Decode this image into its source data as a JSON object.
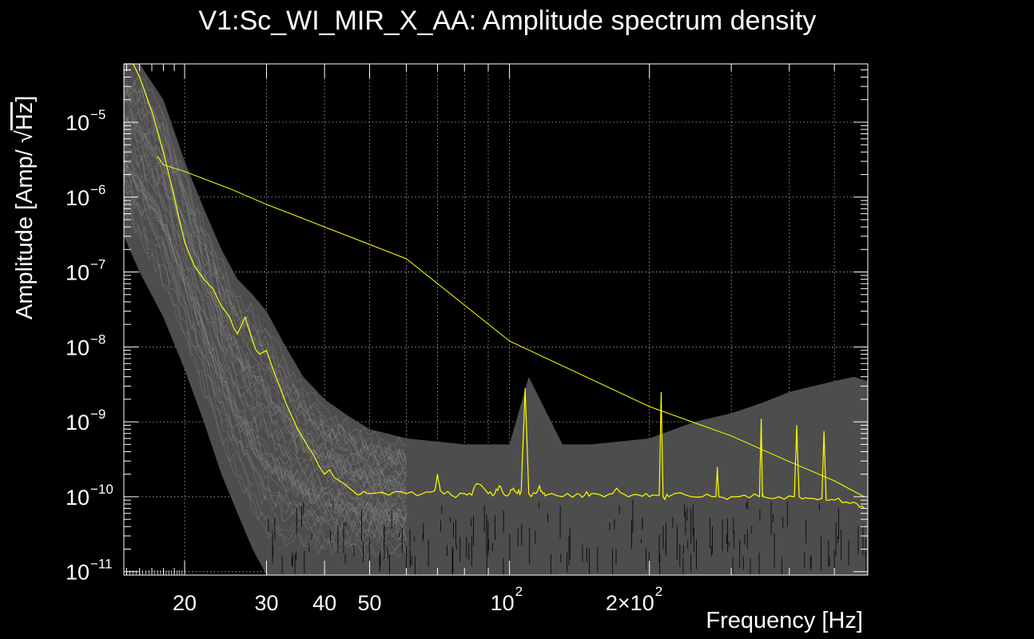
{
  "chart_data": {
    "type": "line",
    "title": "V1:Sc_WI_MIR_X_AA: Amplitude spectrum density",
    "xlabel": "Frequency [Hz]",
    "ylabel_prefix": "Amplitude [Amp/ ",
    "ylabel_radical": "Hz",
    "ylabel_suffix": "]",
    "x_scale": "log",
    "y_scale": "log",
    "xlim": [
      14.8,
      590
    ],
    "ylim": [
      9e-12,
      6e-05
    ],
    "grid": true,
    "x_ticks": [
      {
        "value": 20,
        "label": "20"
      },
      {
        "value": 30,
        "label": "30"
      },
      {
        "value": 40,
        "label": "40"
      },
      {
        "value": 50,
        "label": "50"
      },
      {
        "value": 100,
        "base": "10",
        "exp": "2"
      },
      {
        "value": 200,
        "base": "2×10",
        "exp": "2"
      }
    ],
    "y_ticks": [
      {
        "value": 1e-05,
        "base": "10",
        "exp": "−5"
      },
      {
        "value": 1e-06,
        "base": "10",
        "exp": "−6"
      },
      {
        "value": 1e-07,
        "base": "10",
        "exp": "−7"
      },
      {
        "value": 1e-08,
        "base": "10",
        "exp": "−8"
      },
      {
        "value": 1e-09,
        "base": "10",
        "exp": "−9"
      },
      {
        "value": 1e-10,
        "base": "10",
        "exp": "−10"
      },
      {
        "value": 1e-11,
        "base": "10",
        "exp": "−11"
      }
    ],
    "colors": {
      "background": "#000000",
      "band": "#4d4d4d",
      "band_lines": "#8a8a8a",
      "series": "#ffff00",
      "grid": "#bbbbbb",
      "frame": "#ffffff"
    },
    "series": [
      {
        "role": "median spectrum",
        "x": [
          14.8,
          15.5,
          16,
          17,
          18,
          19,
          20,
          21,
          22,
          23,
          24,
          25,
          25.5,
          26,
          27,
          28,
          28.5,
          29,
          30,
          31,
          33,
          35,
          37,
          38,
          39,
          40,
          41,
          42,
          44,
          46,
          48,
          50,
          55,
          60,
          65,
          69,
          70,
          71,
          75,
          80,
          83,
          85,
          90,
          93,
          95,
          97,
          100,
          102,
          104,
          106,
          108,
          110,
          114,
          116,
          118,
          120,
          130,
          140,
          145,
          150,
          160,
          170,
          180,
          190,
          200,
          210,
          212,
          214,
          220,
          240,
          260,
          278,
          280,
          282,
          300,
          320,
          345,
          348,
          350,
          352,
          380,
          410,
          415,
          420,
          440,
          470,
          475,
          480,
          500,
          530,
          560,
          580
        ],
        "y": [
          6e-05,
          6e-05,
          4e-05,
          1.4e-05,
          4e-06,
          1e-06,
          2.5e-07,
          1.2e-07,
          8e-08,
          6e-08,
          3.5e-08,
          2.5e-08,
          1.8e-08,
          1.5e-08,
          2.5e-08,
          1.2e-08,
          9e-09,
          8e-09,
          9e-09,
          5e-09,
          1.8e-09,
          8e-10,
          4.5e-10,
          3.5e-10,
          2.5e-10,
          2e-10,
          2.3e-10,
          1.8e-10,
          1.5e-10,
          1.2e-10,
          1.1e-10,
          1.1e-10,
          1.05e-10,
          1.1e-10,
          1.1e-10,
          1.2e-10,
          2e-10,
          1.2e-10,
          1.05e-10,
          1.1e-10,
          1.05e-10,
          1.5e-10,
          1.1e-10,
          1.1e-10,
          1.4e-10,
          1.1e-10,
          1.1e-10,
          1.3e-10,
          1.1e-10,
          1.2e-10,
          2.8e-09,
          1.1e-10,
          1.1e-10,
          1.4e-10,
          1.1e-10,
          1.05e-10,
          1e-10,
          1.1e-10,
          1.05e-10,
          1.1e-10,
          1e-10,
          1.3e-10,
          1e-10,
          1.05e-10,
          1e-10,
          1.05e-10,
          2.5e-09,
          1e-10,
          1e-10,
          1.05e-10,
          1e-10,
          1e-10,
          2.5e-10,
          1e-10,
          1e-10,
          1.05e-10,
          1e-10,
          1.1e-09,
          1e-10,
          1e-10,
          1e-10,
          1e-10,
          9e-10,
          1e-10,
          9.5e-11,
          9.5e-11,
          7.5e-10,
          9e-11,
          9e-11,
          8.5e-11,
          8e-11,
          7e-11
        ]
      },
      {
        "role": "reference line",
        "x": [
          17.5,
          18,
          20,
          25,
          30,
          40,
          60,
          100,
          200,
          300,
          400,
          500,
          580
        ],
        "y": [
          3.5e-06,
          2.7e-06,
          2.2e-06,
          1.3e-06,
          8e-07,
          4e-07,
          1.5e-07,
          1.2e-08,
          1.6e-09,
          6.5e-10,
          3e-10,
          1.6e-10,
          1e-10
        ]
      }
    ],
    "spread_band": {
      "x": [
        14.8,
        16,
        18,
        20,
        22,
        24,
        26,
        28,
        30,
        33,
        36,
        40,
        45,
        50,
        60,
        80,
        100,
        110,
        130,
        150,
        200,
        250,
        300,
        350,
        400,
        450,
        500,
        550,
        590
      ],
      "y_upper": [
        6e-05,
        6e-05,
        2e-05,
        3e-06,
        7e-07,
        2e-07,
        8e-08,
        5e-08,
        3e-08,
        1e-08,
        4e-09,
        2e-09,
        1.2e-09,
        8e-10,
        6e-10,
        5e-10,
        5e-10,
        4e-09,
        5e-10,
        5e-10,
        6e-10,
        1e-09,
        1.3e-09,
        1.8e-09,
        2.5e-09,
        3e-09,
        3.5e-09,
        4e-09,
        3.5e-09
      ],
      "y_lower": [
        3e-07,
        1e-07,
        2.5e-08,
        5e-09,
        1e-09,
        2e-10,
        6e-11,
        2e-11,
        9e-12,
        9e-12,
        9e-12,
        9e-12,
        9e-12,
        9e-12,
        9e-12,
        9e-12,
        9e-12,
        9e-12,
        9e-12,
        9e-12,
        9e-12,
        9e-12,
        9e-12,
        9e-12,
        9e-12,
        9e-12,
        9e-12,
        9e-12,
        9e-12
      ]
    }
  }
}
